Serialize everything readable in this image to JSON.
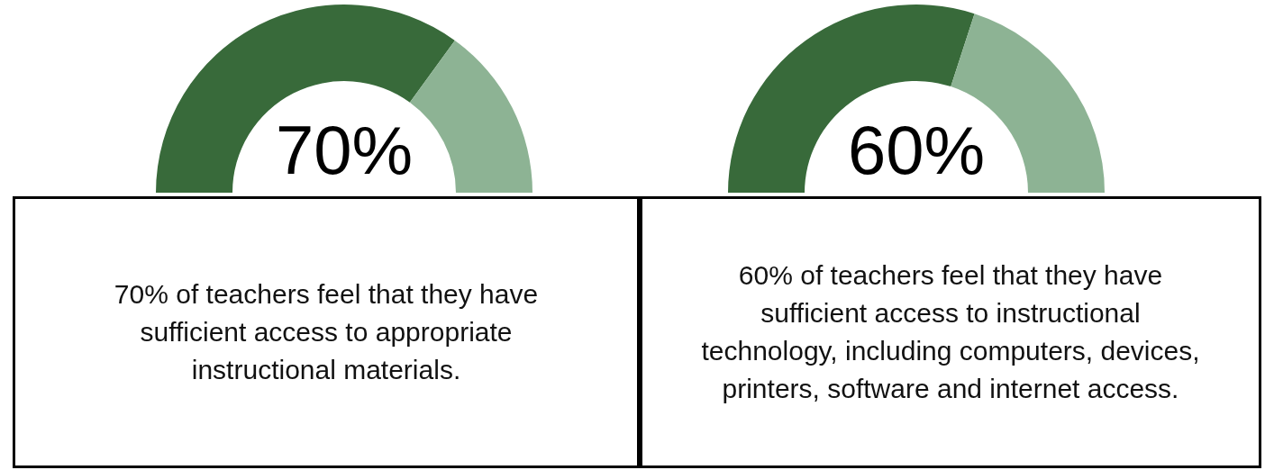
{
  "chart_data": [
    {
      "type": "donut",
      "categories": [
        null,
        null
      ],
      "values": [
        70,
        30
      ],
      "colors": [
        "#386a3a",
        "#8db394"
      ],
      "value_labels": [
        "70%",
        null
      ],
      "annotations": [
        "70% of teachers feel that they have sufficient access to appropriate instructional materials."
      ]
    },
    {
      "type": "donut",
      "categories": [
        null,
        null
      ],
      "values": [
        60,
        40
      ],
      "colors": [
        "#386a3a",
        "#8db394"
      ],
      "value_labels": [
        "60%",
        null
      ],
      "annotations": [
        "60% of teachers feel that they have sufficient access to instructional technology, including computers, devices, printers, software and internet access."
      ]
    }
  ]
}
